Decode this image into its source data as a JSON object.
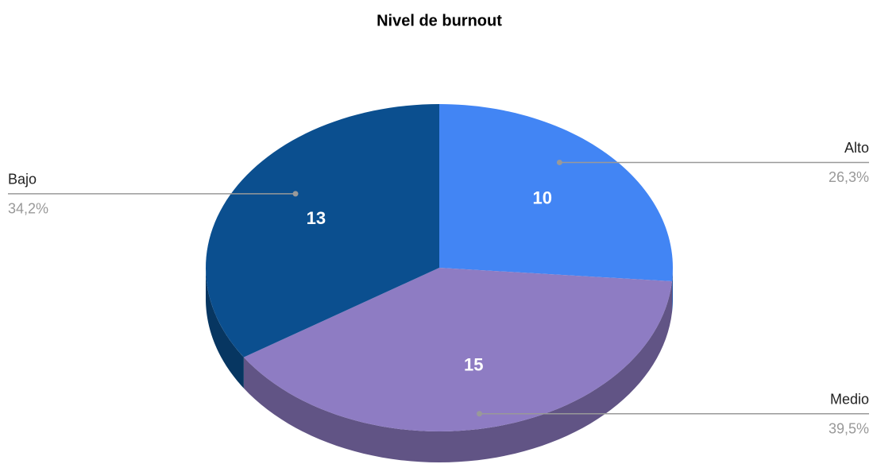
{
  "chart_data": {
    "type": "pie3d",
    "title": "Nivel de burnout",
    "categories": [
      "Alto",
      "Medio",
      "Bajo"
    ],
    "values": [
      10,
      15,
      13
    ],
    "percent_labels": [
      "26,3%",
      "39,5%",
      "34,2%"
    ],
    "colors": [
      "#4285f4",
      "#8e7cc3",
      "#0b4f8f"
    ]
  }
}
